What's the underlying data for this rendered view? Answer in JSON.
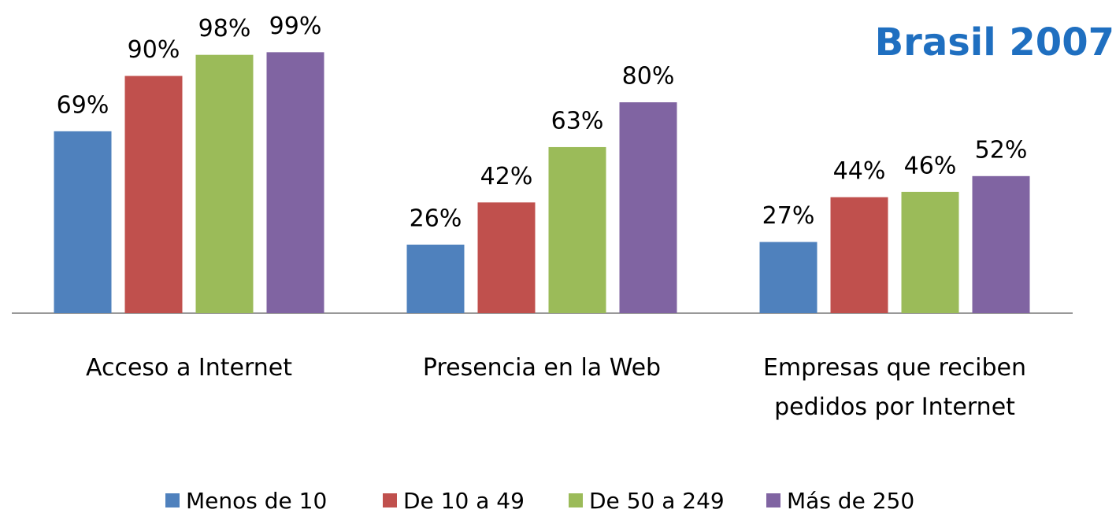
{
  "chart_data": {
    "type": "bar",
    "title": "Brasil 2007",
    "categories": [
      "Acceso a Internet",
      "Presencia en la Web",
      "Empresas que reciben pedidos por Internet"
    ],
    "series": [
      {
        "name": "Menos de 10",
        "color": "#4f81bd",
        "values": [
          69,
          26,
          27
        ],
        "value_labels": [
          "69%",
          "26%",
          "27%"
        ]
      },
      {
        "name": "De 10 a 49",
        "color": "#c0504d",
        "values": [
          90,
          42,
          44
        ],
        "value_labels": [
          "90%",
          "42%",
          "44%"
        ]
      },
      {
        "name": "De 50 a 249",
        "color": "#9bbb59",
        "values": [
          98,
          63,
          46
        ],
        "value_labels": [
          "98%",
          "63%",
          "46%"
        ]
      },
      {
        "name": "Más de 250",
        "color": "#8064a2",
        "values": [
          99,
          80,
          52
        ],
        "value_labels": [
          "99%",
          "80%",
          "52%"
        ]
      }
    ],
    "ylim": [
      0,
      100
    ],
    "legend": "bottom"
  }
}
